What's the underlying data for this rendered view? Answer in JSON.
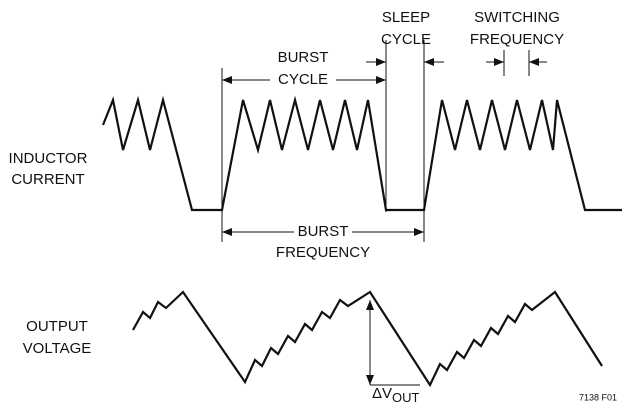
{
  "labels": {
    "sleep_cycle": [
      "SLEEP",
      "CYCLE"
    ],
    "burst_cycle": [
      "BURST",
      "CYCLE"
    ],
    "switching_frequency": [
      "SWITCHING",
      "FREQUENCY"
    ],
    "inductor_current": [
      "INDUCTOR",
      "CURRENT"
    ],
    "burst_frequency": [
      "BURST",
      "FREQUENCY"
    ],
    "output_voltage": [
      "OUTPUT",
      "VOLTAGE"
    ],
    "delta_vout": {
      "symbol": "ΔV",
      "subscript": "OUT"
    }
  },
  "figure_id": "7138 F01"
}
